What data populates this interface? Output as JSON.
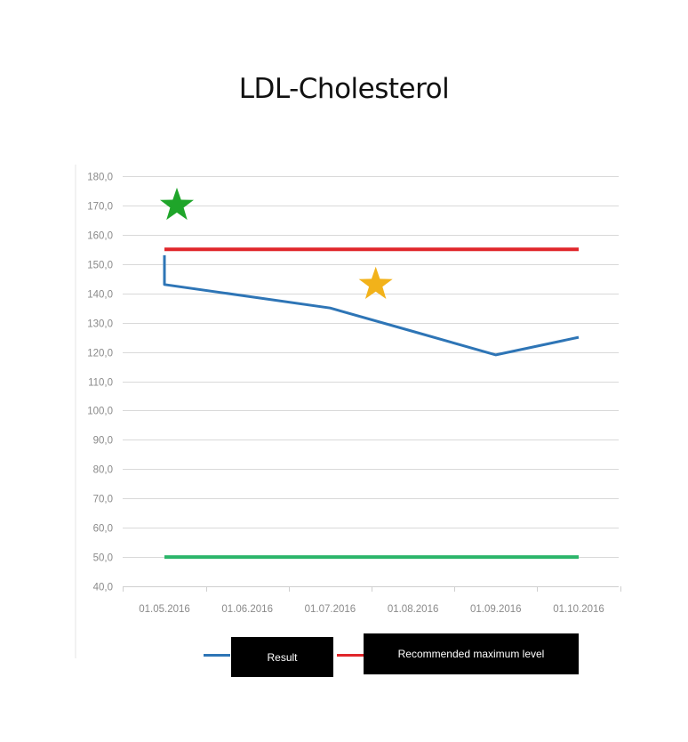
{
  "chart_data": {
    "type": "line",
    "title": "LDL-Cholesterol",
    "xlabel": "",
    "ylabel": "",
    "ylim": [
      40,
      180
    ],
    "y_ticks": [
      "40,0",
      "50,0",
      "60,0",
      "70,0",
      "80,0",
      "90,0",
      "100,0",
      "110,0",
      "120,0",
      "130,0",
      "140,0",
      "150,0",
      "160,0",
      "170,0",
      "180,0"
    ],
    "categories": [
      "01.05.2016",
      "01.06.2016",
      "01.07.2016",
      "01.08.2016",
      "01.09.2016",
      "01.10.2016"
    ],
    "series": [
      {
        "name": "Result",
        "color": "#2e75b6",
        "points": [
          {
            "x": 0,
            "y": 153
          },
          {
            "x": 0,
            "y": 143
          },
          {
            "x": 1,
            "y": 139
          },
          {
            "x": 2,
            "y": 135
          },
          {
            "x": 3,
            "y": 127
          },
          {
            "x": 4,
            "y": 119
          },
          {
            "x": 5,
            "y": 125
          }
        ]
      },
      {
        "name": "Recommended maximum level",
        "color": "#e0262b",
        "points": [
          {
            "x": 0,
            "y": 155
          },
          {
            "x": 5,
            "y": 155
          }
        ]
      },
      {
        "name": "",
        "color": "#2bb56a",
        "points": [
          {
            "x": 0,
            "y": 50
          },
          {
            "x": 5,
            "y": 50
          }
        ]
      }
    ],
    "annotations": [
      {
        "shape": "star",
        "color": "#1fa52a",
        "x": 0.15,
        "y": 170
      },
      {
        "shape": "star",
        "color": "#f2b21a",
        "x": 2.55,
        "y": 143
      }
    ],
    "grid": true,
    "legend": "bottom"
  }
}
